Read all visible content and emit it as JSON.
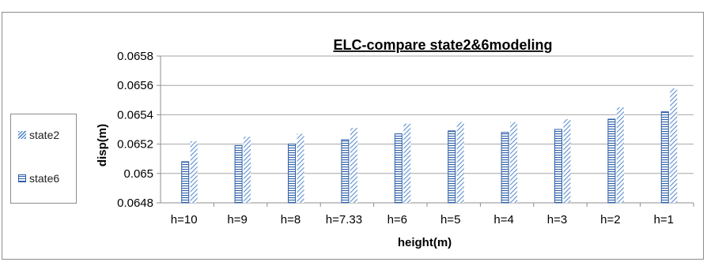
{
  "chart_data": {
    "type": "bar",
    "title": "ELC-compare state2&6modeling",
    "xlabel": "height(m)",
    "ylabel": "disp(m)",
    "categories": [
      "h=10",
      "h=9",
      "h=8",
      "h=7.33",
      "h=6",
      "h=5",
      "h=4",
      "h=3",
      "h=2",
      "h=1"
    ],
    "series": [
      {
        "name": "state6",
        "values": [
          0.06508,
          0.06519,
          0.0652,
          0.06523,
          0.06527,
          0.06529,
          0.06528,
          0.0653,
          0.06537,
          0.06542
        ]
      },
      {
        "name": "state2",
        "values": [
          0.06522,
          0.06525,
          0.06527,
          0.06531,
          0.06534,
          0.06535,
          0.06535,
          0.06537,
          0.06545,
          0.06558
        ]
      }
    ],
    "ylim": [
      0.0648,
      0.0658
    ],
    "yticks": [
      "0.0648",
      "0.065",
      "0.0652",
      "0.0654",
      "0.0656",
      "0.0658"
    ],
    "grid": true,
    "legend": "left",
    "colors": {
      "state2": "#5b8fd0",
      "state6": "#2d5fa6",
      "grid": "#a6a6a6"
    }
  }
}
